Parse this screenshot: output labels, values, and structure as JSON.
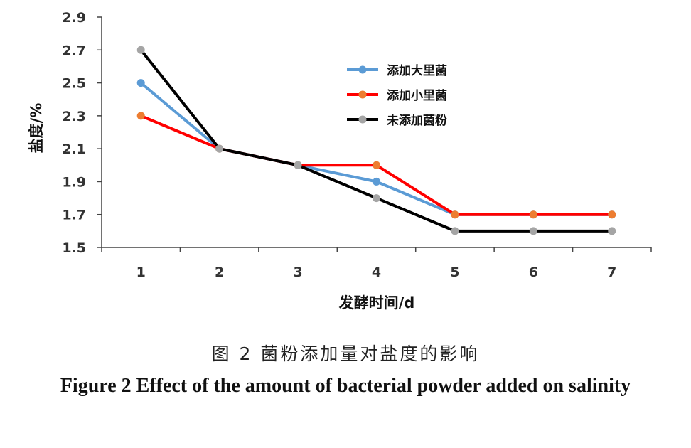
{
  "chart_data": {
    "type": "line",
    "categories": [
      "1",
      "2",
      "3",
      "4",
      "5",
      "6",
      "7"
    ],
    "x": [
      1,
      2,
      3,
      4,
      5,
      6,
      7
    ],
    "xlabel": "发酵时间/d",
    "ylabel": "盐度/%",
    "ylim": [
      1.5,
      2.9
    ],
    "yticks": [
      "1.5",
      "1.7",
      "1.9",
      "2.1",
      "2.3",
      "2.5",
      "2.7",
      "2.9"
    ],
    "grid": false,
    "legend_position": "top-right",
    "series": [
      {
        "name": "添加大里菌",
        "color": "#5B9BD5",
        "values": [
          2.5,
          2.1,
          2.0,
          1.9,
          1.7,
          1.7,
          1.7
        ]
      },
      {
        "name": "添加小里菌",
        "color": "#FF0000",
        "values": [
          2.3,
          2.1,
          2.0,
          2.0,
          1.7,
          1.7,
          1.7
        ]
      },
      {
        "name": "未添加菌粉",
        "color": "#000000",
        "values": [
          2.7,
          2.1,
          2.0,
          1.8,
          1.6,
          1.6,
          1.6
        ]
      }
    ],
    "marker_colors": [
      "#5B9BD5",
      "#ED7D31",
      "#A5A5A5"
    ]
  },
  "caption": {
    "cn": "图 2   菌粉添加量对盐度的影响",
    "en": "Figure 2   Effect of the amount of bacterial powder added on salinity"
  }
}
